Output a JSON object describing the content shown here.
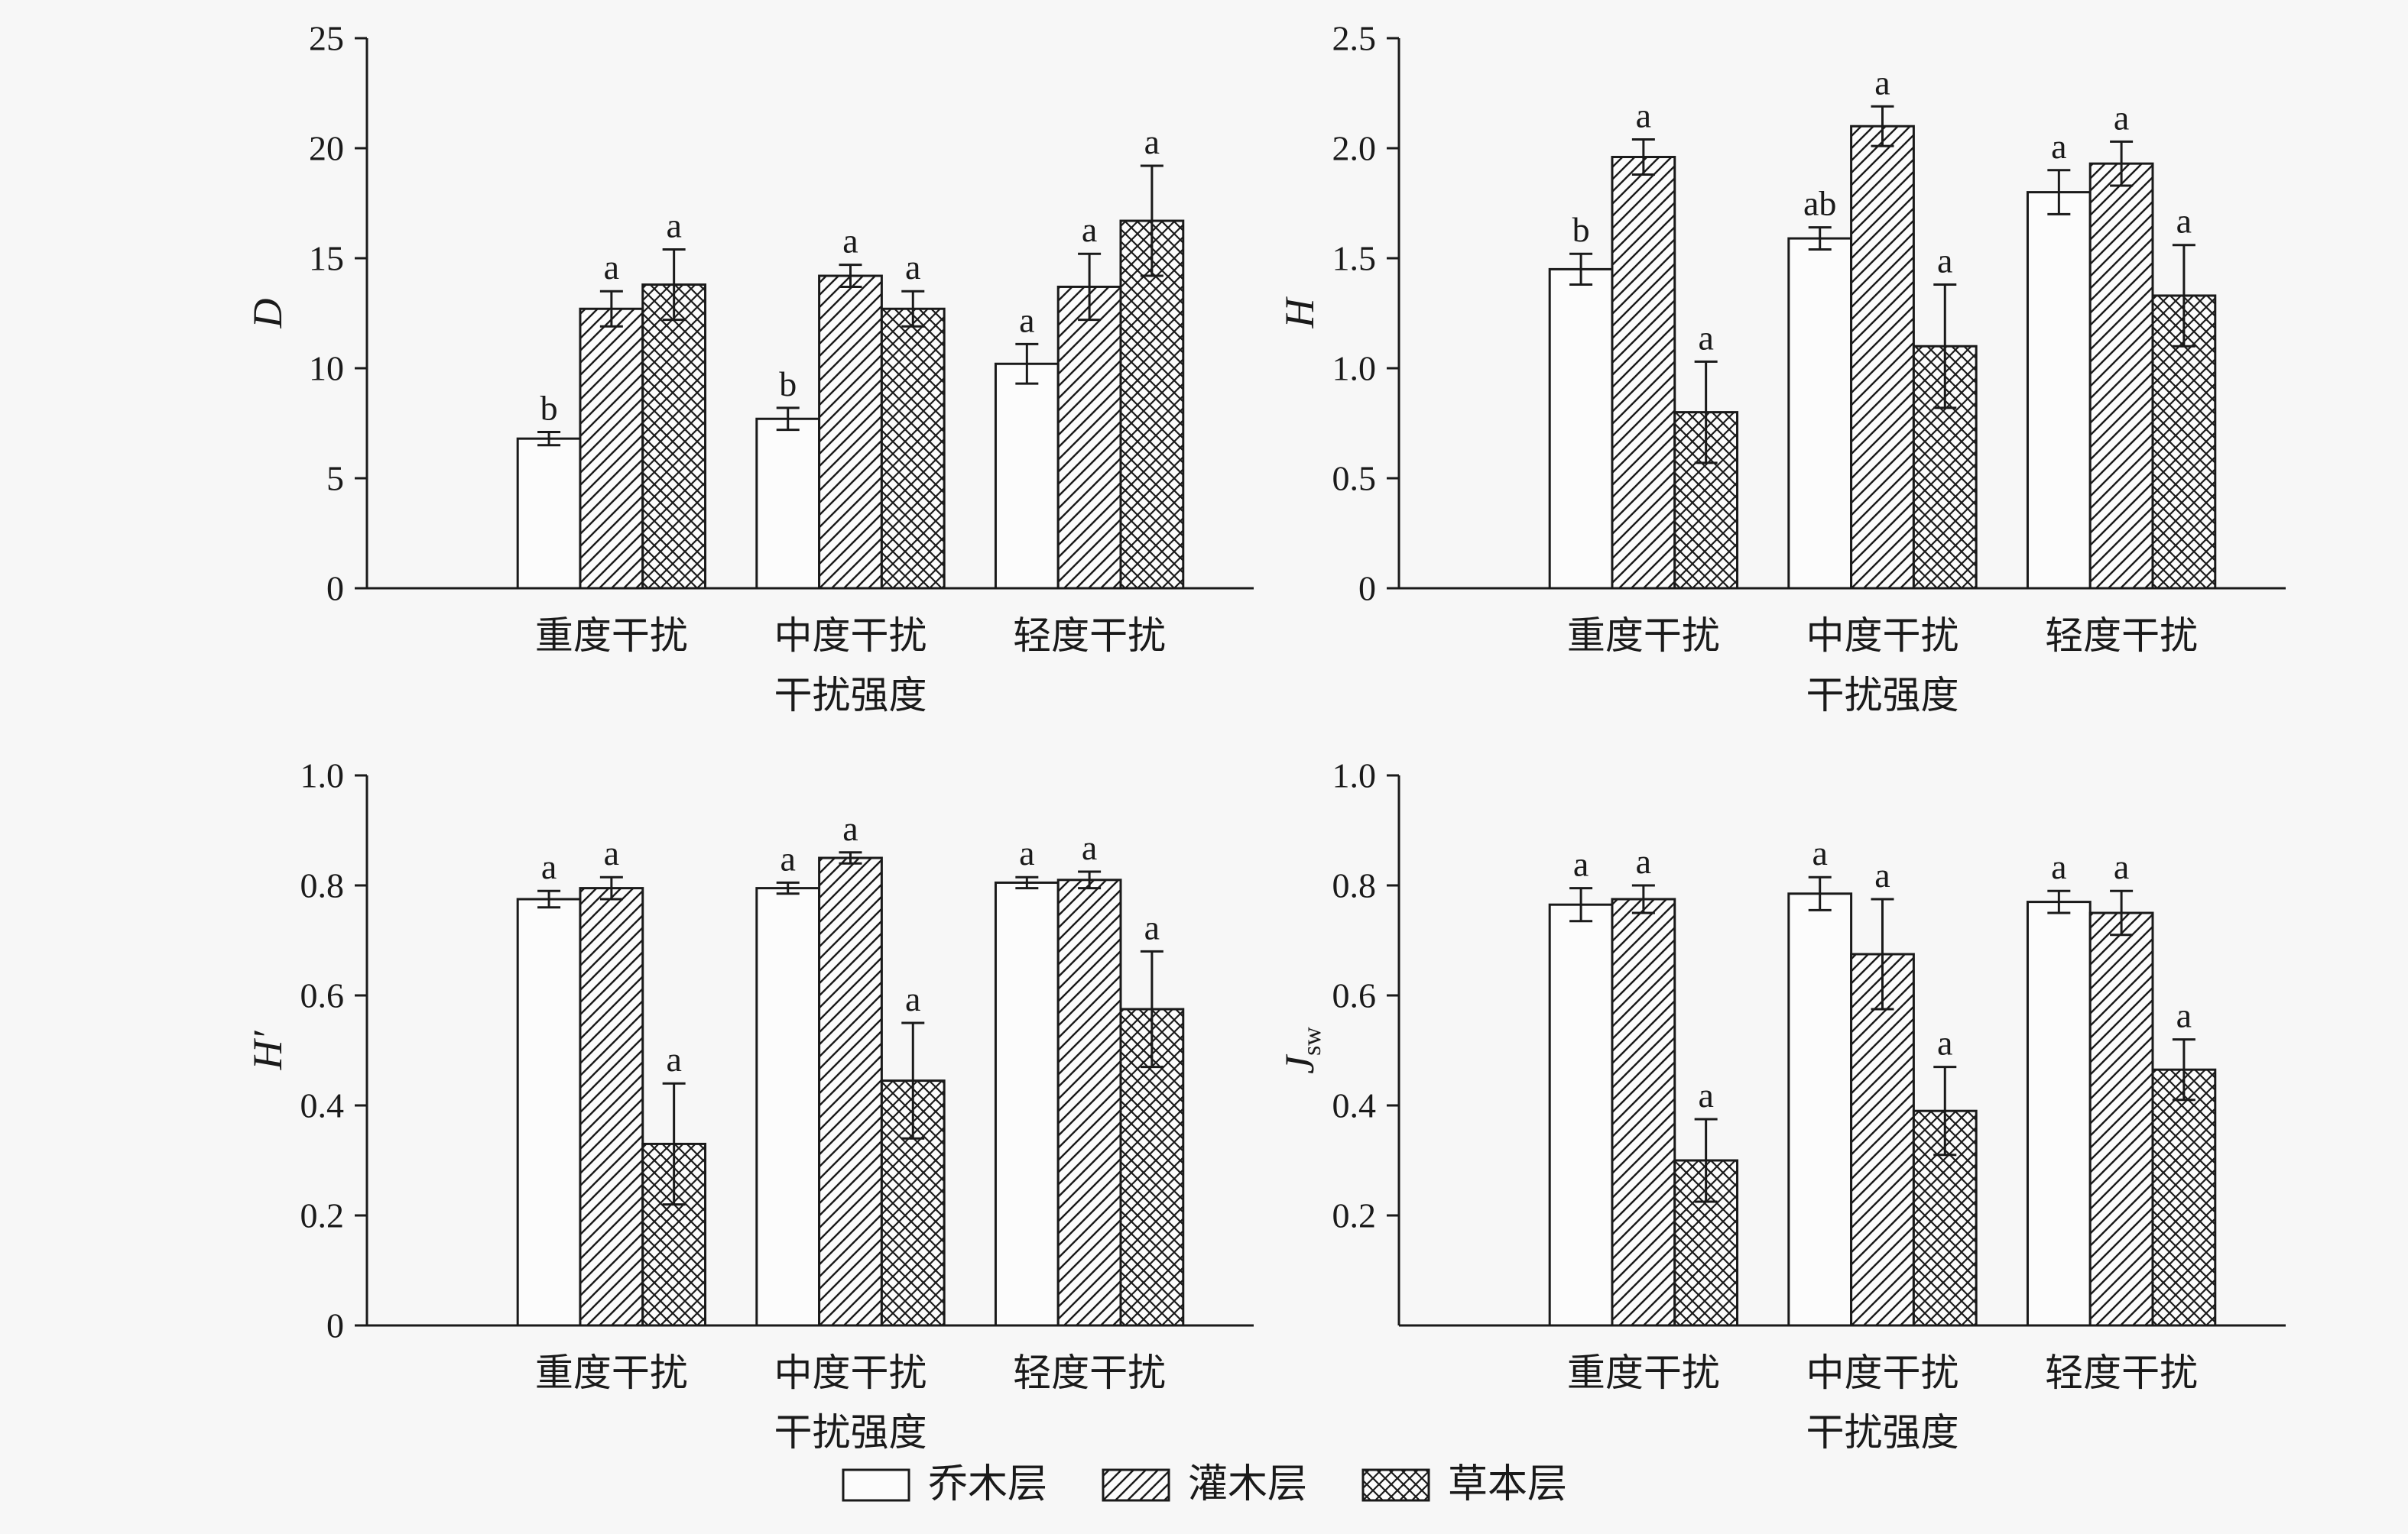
{
  "figure": {
    "background": "#f7f7f7",
    "ink": "#1a1a1a",
    "bar_fill": "#fcfcfc"
  },
  "legend": {
    "items": [
      {
        "label": "乔木层",
        "pattern": "plain"
      },
      {
        "label": "灌木层",
        "pattern": "diagonal"
      },
      {
        "label": "草本层",
        "pattern": "cross"
      }
    ]
  },
  "chart_data": [
    {
      "type": "bar",
      "ylabel": "D",
      "ylabel_sub": "",
      "ylim": [
        0,
        25
      ],
      "ytick_values": [
        0,
        5,
        10,
        15,
        20,
        25
      ],
      "ytick_labels": [
        "0",
        "5",
        "10",
        "15",
        "20",
        "25"
      ],
      "xlabel": "干扰强度",
      "categories": [
        "重度干扰",
        "中度干扰",
        "轻度干扰"
      ],
      "series": [
        {
          "name": "乔木层",
          "pattern": "plain",
          "values": [
            6.8,
            7.7,
            10.2
          ],
          "errors": [
            0.3,
            0.5,
            0.9
          ],
          "letters": [
            "b",
            "b",
            "a"
          ]
        },
        {
          "name": "灌木层",
          "pattern": "diagonal",
          "values": [
            12.7,
            14.2,
            13.7
          ],
          "errors": [
            0.8,
            0.5,
            1.5
          ],
          "letters": [
            "a",
            "a",
            "a"
          ]
        },
        {
          "name": "草本层",
          "pattern": "cross",
          "values": [
            13.8,
            12.7,
            16.7
          ],
          "errors": [
            1.6,
            0.8,
            2.5
          ],
          "letters": [
            "a",
            "a",
            "a"
          ]
        }
      ]
    },
    {
      "type": "bar",
      "ylabel": "H",
      "ylabel_sub": "",
      "ylim": [
        0,
        2.5
      ],
      "ytick_values": [
        0,
        0.5,
        1.0,
        1.5,
        2.0,
        2.5
      ],
      "ytick_labels": [
        "0",
        "0.5",
        "1.0",
        "1.5",
        "2.0",
        "2.5"
      ],
      "xlabel": "干扰强度",
      "categories": [
        "重度干扰",
        "中度干扰",
        "轻度干扰"
      ],
      "series": [
        {
          "name": "乔木层",
          "pattern": "plain",
          "values": [
            1.45,
            1.59,
            1.8
          ],
          "errors": [
            0.07,
            0.05,
            0.1
          ],
          "letters": [
            "b",
            "ab",
            "a"
          ]
        },
        {
          "name": "灌木层",
          "pattern": "diagonal",
          "values": [
            1.96,
            2.1,
            1.93
          ],
          "errors": [
            0.08,
            0.09,
            0.1
          ],
          "letters": [
            "a",
            "a",
            "a"
          ]
        },
        {
          "name": "草本层",
          "pattern": "cross",
          "values": [
            0.8,
            1.1,
            1.33
          ],
          "errors": [
            0.23,
            0.28,
            0.23
          ],
          "letters": [
            "a",
            "a",
            "a"
          ]
        }
      ]
    },
    {
      "type": "bar",
      "ylabel": "H′",
      "ylabel_sub": "",
      "ylim": [
        0,
        1.0
      ],
      "ytick_values": [
        0,
        0.2,
        0.4,
        0.6,
        0.8,
        1.0
      ],
      "ytick_labels": [
        "0",
        "0.2",
        "0.4",
        "0.6",
        "0.8",
        "1.0"
      ],
      "xlabel": "干扰强度",
      "categories": [
        "重度干扰",
        "中度干扰",
        "轻度干扰"
      ],
      "series": [
        {
          "name": "乔木层",
          "pattern": "plain",
          "values": [
            0.775,
            0.795,
            0.805
          ],
          "errors": [
            0.015,
            0.01,
            0.01
          ],
          "letters": [
            "a",
            "a",
            "a"
          ]
        },
        {
          "name": "灌木层",
          "pattern": "diagonal",
          "values": [
            0.795,
            0.85,
            0.81
          ],
          "errors": [
            0.02,
            0.01,
            0.015
          ],
          "letters": [
            "a",
            "a",
            "a"
          ]
        },
        {
          "name": "草本层",
          "pattern": "cross",
          "values": [
            0.33,
            0.445,
            0.575
          ],
          "errors": [
            0.11,
            0.105,
            0.105
          ],
          "letters": [
            "a",
            "a",
            "a"
          ]
        }
      ]
    },
    {
      "type": "bar",
      "ylabel": "J",
      "ylabel_sub": "sw",
      "ylim": [
        0,
        1.0
      ],
      "ytick_values": [
        0.2,
        0.4,
        0.6,
        0.8,
        1.0
      ],
      "ytick_labels": [
        "0.2",
        "0.4",
        "0.6",
        "0.8",
        "1.0"
      ],
      "xlabel": "干扰强度",
      "categories": [
        "重度干扰",
        "中度干扰",
        "轻度干扰"
      ],
      "series": [
        {
          "name": "乔木层",
          "pattern": "plain",
          "values": [
            0.765,
            0.785,
            0.77
          ],
          "errors": [
            0.03,
            0.03,
            0.02
          ],
          "letters": [
            "a",
            "a",
            "a"
          ]
        },
        {
          "name": "灌木层",
          "pattern": "diagonal",
          "values": [
            0.775,
            0.675,
            0.75
          ],
          "errors": [
            0.025,
            0.1,
            0.04
          ],
          "letters": [
            "a",
            "a",
            "a"
          ]
        },
        {
          "name": "草本层",
          "pattern": "cross",
          "values": [
            0.3,
            0.39,
            0.465
          ],
          "errors": [
            0.075,
            0.08,
            0.055
          ],
          "letters": [
            "a",
            "a",
            "a"
          ]
        }
      ]
    }
  ]
}
